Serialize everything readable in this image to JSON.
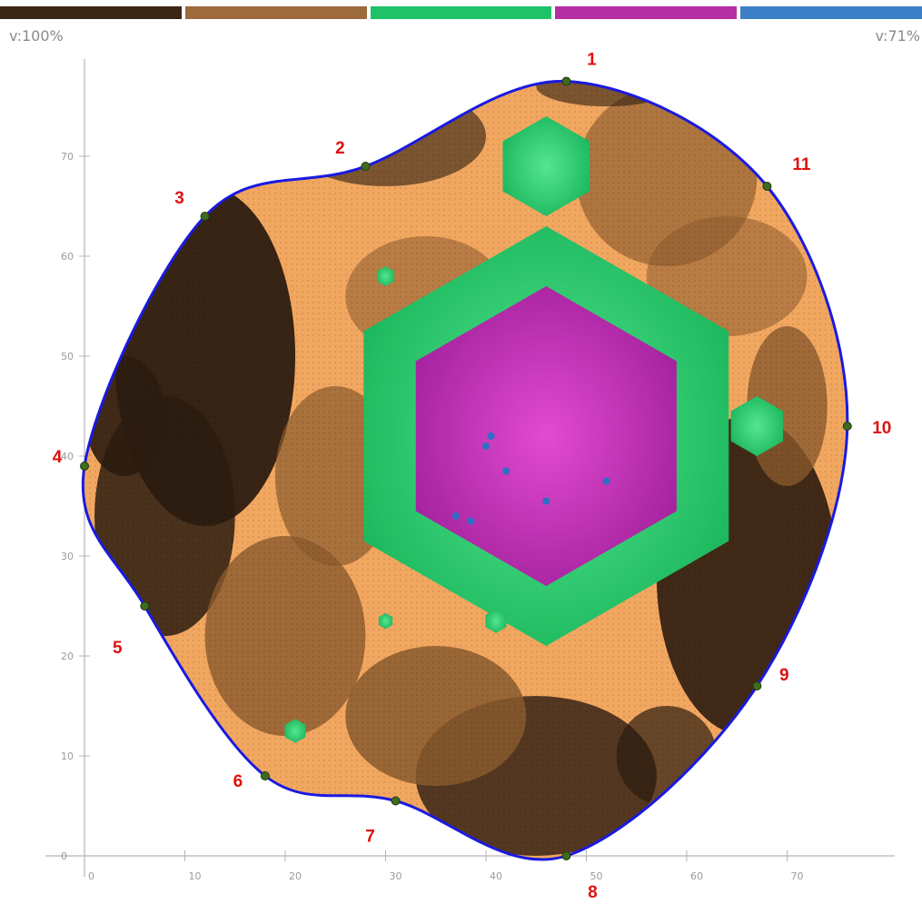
{
  "legend": {
    "segments": [
      {
        "color": "#3b2515"
      },
      {
        "color": "#9c6a3c"
      },
      {
        "color": "#1fc266"
      },
      {
        "color": "#b52ea3"
      },
      {
        "color": "#3c7fc6"
      }
    ],
    "left_label": "v:100%",
    "right_label": "v:71%"
  },
  "colors": {
    "dark": "#2c1c10",
    "mid": "#8a5a2e",
    "light": "#f2a760",
    "green": "#2ad272",
    "magenta": "#c038b4",
    "blue": "#2d6fc4",
    "outline": "#1a1ae0"
  },
  "chart_data": {
    "type": "heatmap",
    "xlim": [
      0,
      80
    ],
    "ylim": [
      0,
      80
    ],
    "x_ticks": [
      "0",
      "10",
      "20",
      "30",
      "40",
      "50",
      "60",
      "70"
    ],
    "y_ticks": [
      "0",
      "10",
      "20",
      "30",
      "40",
      "50",
      "60",
      "70"
    ],
    "grid": false,
    "boundary_points": [
      {
        "label": "1",
        "x": 48,
        "y": 77.5
      },
      {
        "label": "2",
        "x": 28,
        "y": 69
      },
      {
        "label": "3",
        "x": 12,
        "y": 64
      },
      {
        "label": "4",
        "x": 0,
        "y": 39
      },
      {
        "label": "5",
        "x": 6,
        "y": 25
      },
      {
        "label": "6",
        "x": 18,
        "y": 8
      },
      {
        "label": "7",
        "x": 31,
        "y": 5.5
      },
      {
        "label": "8",
        "x": 48,
        "y": 0
      },
      {
        "label": "9",
        "x": 67,
        "y": 17
      },
      {
        "label": "10",
        "x": 76,
        "y": 43
      },
      {
        "label": "11",
        "x": 68,
        "y": 67
      }
    ],
    "regions": [
      {
        "level": "green",
        "cx": 46,
        "cy": 42,
        "r": 21
      },
      {
        "level": "magenta",
        "cx": 46,
        "cy": 42,
        "r": 15
      },
      {
        "level": "green",
        "cx": 46,
        "cy": 69,
        "r": 5
      },
      {
        "level": "green",
        "cx": 67,
        "cy": 43,
        "r": 3
      },
      {
        "level": "green",
        "cx": 21,
        "cy": 12.5,
        "r": 1.2
      },
      {
        "level": "green",
        "cx": 30,
        "cy": 23.5,
        "r": 0.8
      },
      {
        "level": "green",
        "cx": 41,
        "cy": 23.5,
        "r": 1.2
      },
      {
        "level": "green",
        "cx": 30,
        "cy": 58,
        "r": 1
      }
    ]
  }
}
